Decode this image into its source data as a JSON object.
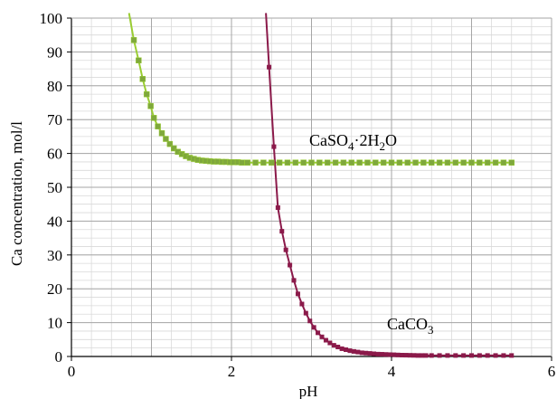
{
  "chart_data": {
    "type": "scatter",
    "xlabel": "pH",
    "ylabel": "Ca concentration,  mol/l",
    "xlim": [
      0,
      6
    ],
    "ylim": [
      0,
      100
    ],
    "x_ticks": [
      0,
      2,
      4,
      6
    ],
    "y_ticks": [
      0,
      10,
      20,
      30,
      40,
      50,
      60,
      70,
      80,
      90,
      100
    ],
    "grid": true,
    "legend": "none",
    "series": [
      {
        "name": "CaSO4·2H2O",
        "label_parts": [
          "CaSO",
          "4",
          "·2H",
          "2",
          "O"
        ],
        "color": "#9acd32",
        "marker_color": "#7fa83c",
        "points": [
          [
            0.78,
            93.5
          ],
          [
            0.84,
            87.5
          ],
          [
            0.89,
            82
          ],
          [
            0.94,
            77.5
          ],
          [
            0.99,
            74
          ],
          [
            1.03,
            70.5
          ],
          [
            1.08,
            68
          ],
          [
            1.13,
            66
          ],
          [
            1.18,
            64.3
          ],
          [
            1.23,
            62.8
          ],
          [
            1.28,
            61.5
          ],
          [
            1.33,
            60.5
          ],
          [
            1.38,
            59.8
          ],
          [
            1.43,
            59.2
          ],
          [
            1.48,
            58.7
          ],
          [
            1.53,
            58.4
          ],
          [
            1.58,
            58.1
          ],
          [
            1.63,
            57.9
          ],
          [
            1.68,
            57.8
          ],
          [
            1.73,
            57.7
          ],
          [
            1.78,
            57.6
          ],
          [
            1.83,
            57.6
          ],
          [
            1.88,
            57.5
          ],
          [
            1.93,
            57.5
          ],
          [
            1.98,
            57.4
          ],
          [
            2.03,
            57.4
          ],
          [
            2.08,
            57.4
          ],
          [
            2.13,
            57.3
          ],
          [
            2.2,
            57.3
          ],
          [
            2.3,
            57.3
          ],
          [
            2.4,
            57.3
          ],
          [
            2.5,
            57.3
          ],
          [
            2.6,
            57.3
          ],
          [
            2.7,
            57.3
          ],
          [
            2.8,
            57.3
          ],
          [
            2.9,
            57.3
          ],
          [
            3.0,
            57.3
          ],
          [
            3.1,
            57.3
          ],
          [
            3.2,
            57.3
          ],
          [
            3.3,
            57.3
          ],
          [
            3.4,
            57.3
          ],
          [
            3.5,
            57.3
          ],
          [
            3.6,
            57.3
          ],
          [
            3.7,
            57.3
          ],
          [
            3.8,
            57.3
          ],
          [
            3.9,
            57.3
          ],
          [
            4.0,
            57.3
          ],
          [
            4.1,
            57.3
          ],
          [
            4.2,
            57.3
          ],
          [
            4.3,
            57.3
          ],
          [
            4.4,
            57.3
          ],
          [
            4.5,
            57.3
          ],
          [
            4.6,
            57.3
          ],
          [
            4.7,
            57.3
          ],
          [
            4.8,
            57.3
          ],
          [
            4.9,
            57.3
          ],
          [
            5.0,
            57.3
          ],
          [
            5.1,
            57.3
          ],
          [
            5.2,
            57.3
          ],
          [
            5.3,
            57.3
          ],
          [
            5.4,
            57.3
          ],
          [
            5.5,
            57.3
          ]
        ]
      },
      {
        "name": "CaCO3",
        "label_parts": [
          "CaCO",
          "3"
        ],
        "color": "#8b1a4a",
        "marker_color": "#8b1a4a",
        "points": [
          [
            2.47,
            85.5
          ],
          [
            2.53,
            62
          ],
          [
            2.58,
            44
          ],
          [
            2.63,
            37
          ],
          [
            2.68,
            31.5
          ],
          [
            2.73,
            27
          ],
          [
            2.78,
            22.5
          ],
          [
            2.83,
            18.5
          ],
          [
            2.88,
            15.5
          ],
          [
            2.93,
            12.8
          ],
          [
            2.98,
            10.5
          ],
          [
            3.03,
            8.6
          ],
          [
            3.08,
            7
          ],
          [
            3.13,
            5.8
          ],
          [
            3.18,
            4.8
          ],
          [
            3.23,
            4
          ],
          [
            3.28,
            3.3
          ],
          [
            3.33,
            2.8
          ],
          [
            3.38,
            2.3
          ],
          [
            3.43,
            2
          ],
          [
            3.48,
            1.7
          ],
          [
            3.53,
            1.5
          ],
          [
            3.58,
            1.3
          ],
          [
            3.63,
            1.1
          ],
          [
            3.68,
            1
          ],
          [
            3.73,
            0.9
          ],
          [
            3.78,
            0.8
          ],
          [
            3.83,
            0.7
          ],
          [
            3.88,
            0.65
          ],
          [
            3.93,
            0.6
          ],
          [
            3.98,
            0.55
          ],
          [
            4.03,
            0.5
          ],
          [
            4.08,
            0.45
          ],
          [
            4.13,
            0.4
          ],
          [
            4.18,
            0.38
          ],
          [
            4.23,
            0.35
          ],
          [
            4.28,
            0.33
          ],
          [
            4.33,
            0.3
          ],
          [
            4.38,
            0.3
          ],
          [
            4.43,
            0.3
          ],
          [
            4.5,
            0.3
          ],
          [
            4.6,
            0.3
          ],
          [
            4.7,
            0.3
          ],
          [
            4.8,
            0.3
          ],
          [
            4.9,
            0.3
          ],
          [
            5.0,
            0.3
          ],
          [
            5.1,
            0.3
          ],
          [
            5.2,
            0.3
          ],
          [
            5.3,
            0.3
          ],
          [
            5.4,
            0.3
          ],
          [
            5.5,
            0.3
          ]
        ]
      }
    ]
  }
}
